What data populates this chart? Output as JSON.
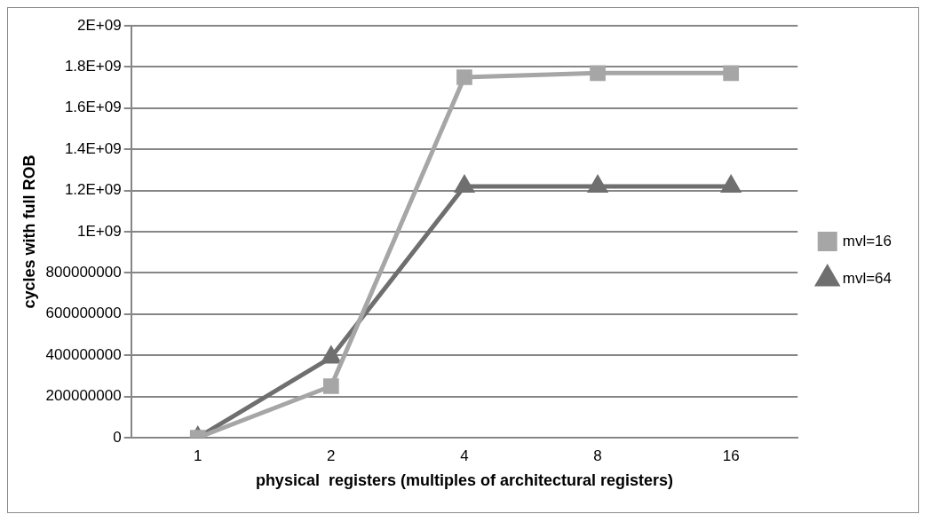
{
  "chart_data": {
    "type": "line",
    "xlabel": "physical  registers (multiples of architectural registers)",
    "ylabel": "cycles with full ROB",
    "categories": [
      "1",
      "2",
      "4",
      "8",
      "16"
    ],
    "series": [
      {
        "name": "mvl=16",
        "color": "#a6a6a6",
        "marker": "square",
        "values": [
          0,
          250000000,
          1750000000,
          1770000000,
          1770000000
        ]
      },
      {
        "name": "mvl=64",
        "color": "#6f6f6f",
        "marker": "triangle",
        "values": [
          0,
          390000000,
          1220000000,
          1220000000,
          1220000000
        ]
      }
    ],
    "ylim": [
      0,
      2000000000
    ],
    "yticks": [
      0,
      200000000,
      400000000,
      600000000,
      800000000,
      {
        "value": 1000000000,
        "label": "1E+09"
      },
      {
        "value": 1200000000,
        "label": "1.2E+09"
      },
      {
        "value": 1400000000,
        "label": "1.4E+09"
      },
      {
        "value": 1600000000,
        "label": "1.6E+09"
      },
      {
        "value": 1800000000,
        "label": "1.8E+09"
      },
      {
        "value": 2000000000,
        "label": "2E+09"
      }
    ],
    "grid": "y",
    "legend": "right",
    "line_style": "solid"
  }
}
